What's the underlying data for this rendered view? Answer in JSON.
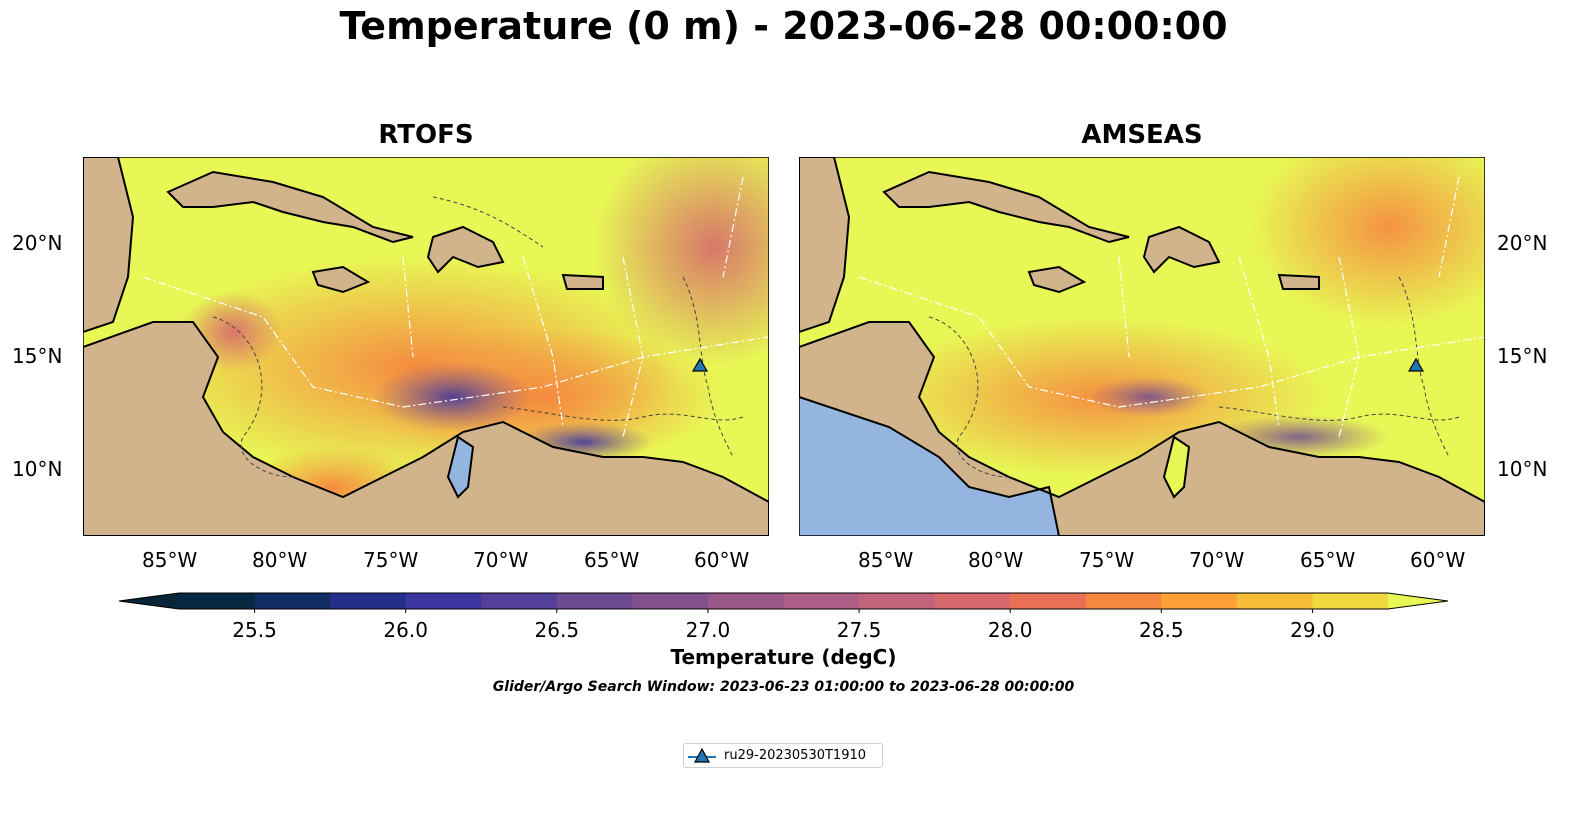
{
  "title": "Temperature (0 m) - 2023-06-28 00:00:00",
  "panels": [
    {
      "name": "RTOFS"
    },
    {
      "name": "AMSEAS"
    }
  ],
  "axes": {
    "lon_labels": [
      "85°W",
      "80°W",
      "75°W",
      "70°W",
      "65°W",
      "60°W"
    ],
    "lat_labels": [
      "20°N",
      "15°N",
      "10°N"
    ]
  },
  "colorbar": {
    "label": "Temperature (degC)",
    "ticks": [
      "25.5",
      "26.0",
      "26.5",
      "27.0",
      "27.5",
      "28.0",
      "28.5",
      "29.0"
    ],
    "colors": [
      "#062840",
      "#0f2d62",
      "#242f8c",
      "#3c36a0",
      "#554099",
      "#6c4a92",
      "#82508c",
      "#99578a",
      "#ad5e86",
      "#c1647b",
      "#d6696c",
      "#e97057",
      "#f6873f",
      "#fba135",
      "#f6bd38",
      "#f0d93f"
    ],
    "extend_low_color": "#08253a",
    "extend_high_color": "#e8f755",
    "range": [
      25.25,
      29.25
    ]
  },
  "search_window": "Glider/Argo Search Window: 2023-06-23 01:00:00 to 2023-06-28 00:00:00",
  "legend": {
    "entries": [
      {
        "label": "ru29-20230530T1910",
        "color": "#1f77b4",
        "marker": "triangle"
      }
    ]
  },
  "colors": {
    "land": "#d2b48c",
    "warm_sea": "#e8f755",
    "ocean_deep": "#94b5e0",
    "glider": "#1f77b4"
  },
  "map_extent": {
    "lon": [
      -89,
      -58
    ],
    "lat": [
      7,
      24
    ]
  },
  "glider_position": {
    "lon": -61.1,
    "lat": 14.5
  }
}
